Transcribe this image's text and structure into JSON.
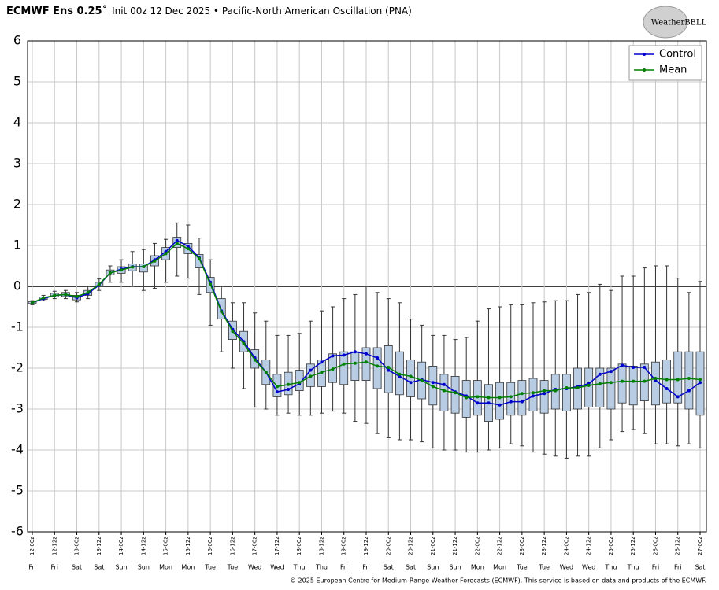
{
  "chart_data": {
    "type": "box",
    "title": "ECMWF Ens 0.25˚",
    "subtitle": "Init 00z 12 Dec 2025 • Pacific-North American Oscillation (PNA)",
    "logo": "WeatherBELL",
    "footer": "© 2025 European Centre for Medium-Range Weather Forecasts (ECMWF). This service is based on data and products of the ECMWF.",
    "categories": [
      "12-00z",
      null,
      "12-12z",
      null,
      "13-00z",
      null,
      "13-12z",
      null,
      "14-00z",
      null,
      "14-12z",
      null,
      "15-00z",
      null,
      "15-12z",
      null,
      "16-00z",
      null,
      "16-12z",
      null,
      "17-00z",
      null,
      "17-12z",
      null,
      "18-00z",
      null,
      "18-12z",
      null,
      "19-00z",
      null,
      "19-12z",
      null,
      "20-00z",
      null,
      "20-12z",
      null,
      "21-00z",
      null,
      "21-12z",
      null,
      "22-00z",
      null,
      "22-12z",
      null,
      "23-00z",
      null,
      "23-12z",
      null,
      "24-00z",
      null,
      "24-12z",
      null,
      "25-00z",
      null,
      "25-12z",
      null,
      "26-00z",
      null,
      "26-12z",
      null,
      "27-00z"
    ],
    "day_labels": [
      "Fri",
      null,
      "Fri",
      null,
      "Sat",
      null,
      "Sat",
      null,
      "Sun",
      null,
      "Sun",
      null,
      "Mon",
      null,
      "Mon",
      null,
      "Tue",
      null,
      "Tue",
      null,
      "Wed",
      null,
      "Wed",
      null,
      "Thu",
      null,
      "Thu",
      null,
      "Fri",
      null,
      "Fri",
      null,
      "Sat",
      null,
      "Sat",
      null,
      "Sun",
      null,
      "Sun",
      null,
      "Mon",
      null,
      "Mon",
      null,
      "Tue",
      null,
      "Tue",
      null,
      "Wed",
      null,
      "Wed",
      null,
      "Thu",
      null,
      "Thu",
      null,
      "Fri",
      null,
      "Fri",
      null,
      "Sat"
    ],
    "boxes": {
      "color": "#b8cce4",
      "min": [
        -0.45,
        -0.35,
        -0.3,
        -0.3,
        -0.38,
        -0.3,
        -0.1,
        0.1,
        0.1,
        0.0,
        -0.1,
        -0.05,
        0.1,
        0.25,
        0.2,
        -0.2,
        -0.95,
        -1.6,
        -2.0,
        -2.5,
        -2.95,
        -3.0,
        -3.15,
        -3.1,
        -3.15,
        -3.15,
        -3.1,
        -3.05,
        -3.1,
        -3.3,
        -3.35,
        -3.6,
        -3.7,
        -3.75,
        -3.75,
        -3.8,
        -3.95,
        -4.0,
        -4.0,
        -4.05,
        -4.05,
        -4.0,
        -3.95,
        -3.85,
        -3.9,
        -4.05,
        -4.1,
        -4.15,
        -4.2,
        -4.15,
        -4.15,
        -3.95,
        -3.75,
        -3.55,
        -3.5,
        -3.6,
        -3.85,
        -3.85,
        -3.9,
        -3.85,
        -3.95
      ],
      "q1": [
        -0.42,
        -0.32,
        -0.26,
        -0.25,
        -0.33,
        -0.22,
        0.0,
        0.28,
        0.32,
        0.38,
        0.35,
        0.5,
        0.65,
        0.95,
        0.8,
        0.45,
        -0.15,
        -0.8,
        -1.3,
        -1.6,
        -2.0,
        -2.4,
        -2.7,
        -2.65,
        -2.55,
        -2.45,
        -2.45,
        -2.35,
        -2.4,
        -2.3,
        -2.3,
        -2.5,
        -2.6,
        -2.65,
        -2.7,
        -2.75,
        -2.9,
        -3.05,
        -3.1,
        -3.2,
        -3.15,
        -3.3,
        -3.25,
        -3.15,
        -3.15,
        -3.05,
        -3.1,
        -3.0,
        -3.05,
        -3.0,
        -2.95,
        -2.95,
        -3.0,
        -2.85,
        -2.9,
        -2.8,
        -2.9,
        -2.85,
        -2.85,
        -3.0,
        -3.15
      ],
      "q3": [
        -0.37,
        -0.26,
        -0.17,
        -0.15,
        -0.22,
        -0.1,
        0.1,
        0.4,
        0.48,
        0.55,
        0.55,
        0.75,
        0.95,
        1.2,
        1.05,
        0.78,
        0.22,
        -0.3,
        -0.85,
        -1.1,
        -1.55,
        -1.8,
        -2.15,
        -2.1,
        -2.05,
        -1.9,
        -1.8,
        -1.65,
        -1.6,
        -1.6,
        -1.5,
        -1.5,
        -1.45,
        -1.6,
        -1.8,
        -1.85,
        -1.95,
        -2.15,
        -2.2,
        -2.3,
        -2.3,
        -2.4,
        -2.35,
        -2.35,
        -2.3,
        -2.25,
        -2.3,
        -2.15,
        -2.15,
        -2.0,
        -2.0,
        -2.0,
        -2.0,
        -1.9,
        -1.95,
        -1.9,
        -1.85,
        -1.8,
        -1.6,
        -1.6,
        -1.6
      ],
      "max": [
        -0.35,
        -0.22,
        -0.12,
        -0.1,
        -0.15,
        0.0,
        0.18,
        0.5,
        0.65,
        0.85,
        0.9,
        1.05,
        1.15,
        1.55,
        1.5,
        1.18,
        0.65,
        0.0,
        -0.4,
        -0.4,
        -0.65,
        -0.85,
        -1.2,
        -1.2,
        -1.15,
        -0.85,
        -0.6,
        -0.5,
        -0.3,
        -0.2,
        0.0,
        -0.15,
        -0.3,
        -0.4,
        -0.8,
        -0.95,
        -1.2,
        -1.2,
        -1.3,
        -1.25,
        -0.85,
        -0.55,
        -0.5,
        -0.45,
        -0.45,
        -0.4,
        -0.38,
        -0.35,
        -0.35,
        -0.2,
        -0.15,
        0.05,
        -0.1,
        0.25,
        0.25,
        0.45,
        0.5,
        0.5,
        0.2,
        -0.15,
        0.12
      ]
    },
    "series": [
      {
        "name": "Control",
        "color": "#0000cc",
        "values": [
          -0.4,
          -0.3,
          -0.22,
          -0.2,
          -0.28,
          -0.18,
          0.03,
          0.33,
          0.42,
          0.48,
          0.48,
          0.65,
          0.85,
          1.12,
          0.98,
          0.7,
          0.1,
          -0.6,
          -1.05,
          -1.35,
          -1.75,
          -2.1,
          -2.58,
          -2.52,
          -2.38,
          -2.05,
          -1.85,
          -1.7,
          -1.68,
          -1.6,
          -1.65,
          -1.75,
          -2.05,
          -2.2,
          -2.35,
          -2.28,
          -2.35,
          -2.4,
          -2.58,
          -2.68,
          -2.85,
          -2.85,
          -2.9,
          -2.82,
          -2.82,
          -2.68,
          -2.62,
          -2.52,
          -2.5,
          -2.45,
          -2.38,
          -2.15,
          -2.08,
          -1.93,
          -1.98,
          -1.98,
          -2.3,
          -2.5,
          -2.7,
          -2.55,
          -2.35
        ]
      },
      {
        "name": "Mean",
        "color": "#008000",
        "values": [
          -0.4,
          -0.28,
          -0.22,
          -0.2,
          -0.25,
          -0.15,
          0.05,
          0.33,
          0.4,
          0.47,
          0.48,
          0.62,
          0.8,
          1.05,
          0.92,
          0.68,
          0.05,
          -0.62,
          -1.1,
          -1.4,
          -1.8,
          -2.1,
          -2.45,
          -2.4,
          -2.35,
          -2.2,
          -2.1,
          -2.02,
          -1.9,
          -1.88,
          -1.85,
          -1.95,
          -1.98,
          -2.15,
          -2.2,
          -2.3,
          -2.45,
          -2.55,
          -2.6,
          -2.72,
          -2.7,
          -2.72,
          -2.72,
          -2.7,
          -2.62,
          -2.6,
          -2.55,
          -2.55,
          -2.48,
          -2.48,
          -2.42,
          -2.38,
          -2.35,
          -2.32,
          -2.32,
          -2.32,
          -2.25,
          -2.28,
          -2.28,
          -2.25,
          -2.28
        ]
      }
    ],
    "ylim": [
      -6,
      6
    ],
    "yticks": [
      -6,
      -5,
      -4,
      -3,
      -2,
      -1,
      0,
      1,
      2,
      3,
      4,
      5,
      6
    ],
    "grid": true,
    "legend": "upper right"
  }
}
